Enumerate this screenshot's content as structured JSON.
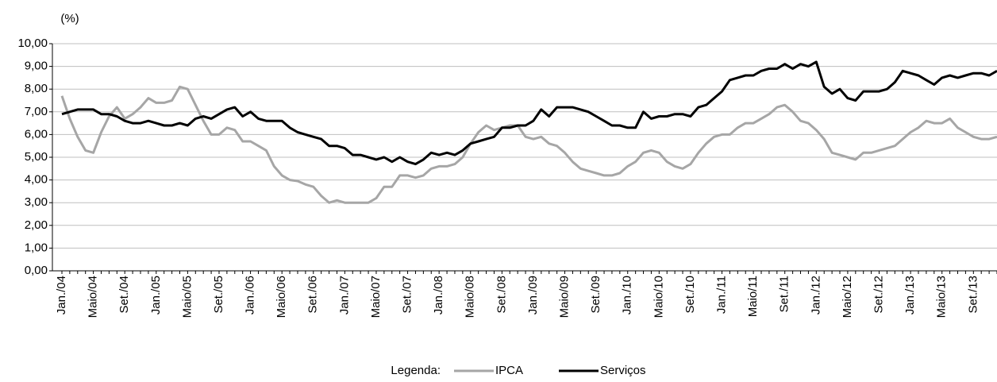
{
  "chart_data": {
    "type": "line",
    "y_unit_label": "(%)",
    "legend_title": "Legenda:",
    "categories": [
      "Jan./04",
      null,
      null,
      null,
      "Maio/04",
      null,
      null,
      null,
      "Set./04",
      null,
      null,
      null,
      "Jan./05",
      null,
      null,
      null,
      "Maio/05",
      null,
      null,
      null,
      "Set./05",
      null,
      null,
      null,
      "Jan./06",
      null,
      null,
      null,
      "Maio/06",
      null,
      null,
      null,
      "Set./06",
      null,
      null,
      null,
      "Jan./07",
      null,
      null,
      null,
      "Maio/07",
      null,
      null,
      null,
      "Set./07",
      null,
      null,
      null,
      "Jan./08",
      null,
      null,
      null,
      "Maio/08",
      null,
      null,
      null,
      "Set./08",
      null,
      null,
      null,
      "Jan./09",
      null,
      null,
      null,
      "Maio/09",
      null,
      null,
      null,
      "Set./09",
      null,
      null,
      null,
      "Jan./10",
      null,
      null,
      null,
      "Maio/10",
      null,
      null,
      null,
      "Set./10",
      null,
      null,
      null,
      "Jan./11",
      null,
      null,
      null,
      "Maio/11",
      null,
      null,
      null,
      "Set./11",
      null,
      null,
      null,
      "Jan./12",
      null,
      null,
      null,
      "Maio/12",
      null,
      null,
      null,
      "Set./12",
      null,
      null,
      null,
      "Jan./13",
      null,
      null,
      null,
      "Maio/13",
      null,
      null,
      null,
      "Set./13",
      null,
      null,
      null
    ],
    "series": [
      {
        "name": "IPCA",
        "color": "#a6a6a6",
        "values": [
          7.7,
          6.7,
          5.9,
          5.3,
          5.2,
          6.1,
          6.8,
          7.2,
          6.7,
          6.9,
          7.2,
          7.6,
          7.4,
          7.4,
          7.5,
          8.1,
          8.0,
          7.3,
          6.6,
          6.0,
          6.0,
          6.3,
          6.2,
          5.7,
          5.7,
          5.5,
          5.3,
          4.6,
          4.2,
          4.0,
          3.95,
          3.8,
          3.7,
          3.3,
          3.0,
          3.1,
          3.0,
          3.0,
          3.0,
          3.0,
          3.2,
          3.7,
          3.7,
          4.2,
          4.2,
          4.1,
          4.2,
          4.5,
          4.6,
          4.6,
          4.7,
          5.0,
          5.6,
          6.1,
          6.4,
          6.2,
          6.3,
          6.4,
          6.4,
          5.9,
          5.8,
          5.9,
          5.6,
          5.5,
          5.2,
          4.8,
          4.5,
          4.4,
          4.3,
          4.2,
          4.2,
          4.3,
          4.6,
          4.8,
          5.2,
          5.3,
          5.2,
          4.8,
          4.6,
          4.5,
          4.7,
          5.2,
          5.6,
          5.9,
          6.0,
          6.0,
          6.3,
          6.5,
          6.5,
          6.7,
          6.9,
          7.2,
          7.3,
          7.0,
          6.6,
          6.5,
          6.2,
          5.8,
          5.2,
          5.1,
          5.0,
          4.9,
          5.2,
          5.2,
          5.3,
          5.4,
          5.5,
          5.8,
          6.1,
          6.3,
          6.6,
          6.5,
          6.5,
          6.7,
          6.3,
          6.1,
          5.9,
          5.8,
          5.8,
          5.9
        ]
      },
      {
        "name": "Serviços",
        "color": "#000000",
        "values": [
          6.9,
          7.0,
          7.1,
          7.1,
          7.1,
          6.9,
          6.9,
          6.8,
          6.6,
          6.5,
          6.5,
          6.6,
          6.5,
          6.4,
          6.4,
          6.5,
          6.4,
          6.7,
          6.8,
          6.7,
          6.9,
          7.1,
          7.2,
          6.8,
          7.0,
          6.7,
          6.6,
          6.6,
          6.6,
          6.3,
          6.1,
          6.0,
          5.9,
          5.8,
          5.5,
          5.5,
          5.4,
          5.1,
          5.1,
          5.0,
          4.9,
          5.0,
          4.8,
          5.0,
          4.8,
          4.7,
          4.9,
          5.2,
          5.1,
          5.2,
          5.1,
          5.3,
          5.6,
          5.7,
          5.8,
          5.9,
          6.3,
          6.3,
          6.4,
          6.4,
          6.6,
          7.1,
          6.8,
          7.2,
          7.2,
          7.2,
          7.1,
          7.0,
          6.8,
          6.6,
          6.4,
          6.4,
          6.3,
          6.3,
          7.0,
          6.7,
          6.8,
          6.8,
          6.9,
          6.9,
          6.8,
          7.2,
          7.3,
          7.6,
          7.9,
          8.4,
          8.5,
          8.6,
          8.6,
          8.8,
          8.9,
          8.9,
          9.1,
          8.9,
          9.1,
          9.0,
          9.2,
          8.1,
          7.8,
          8.0,
          7.6,
          7.5,
          7.9,
          7.9,
          7.9,
          8.0,
          8.3,
          8.8,
          8.7,
          8.6,
          8.4,
          8.2,
          8.5,
          8.6,
          8.5,
          8.6,
          8.7,
          8.7,
          8.6,
          8.8
        ]
      }
    ],
    "ylim": [
      0,
      10
    ],
    "yticks": [
      {
        "value": 0,
        "label": "0,00"
      },
      {
        "value": 1,
        "label": "1,00"
      },
      {
        "value": 2,
        "label": "2,00"
      },
      {
        "value": 3,
        "label": "3,00"
      },
      {
        "value": 4,
        "label": "4,00"
      },
      {
        "value": 5,
        "label": "5,00"
      },
      {
        "value": 6,
        "label": "6,00"
      },
      {
        "value": 7,
        "label": "7,00"
      },
      {
        "value": 8,
        "label": "8,00"
      },
      {
        "value": 9,
        "label": "9,00"
      },
      {
        "value": 10,
        "label": "10,00"
      }
    ],
    "grid": true,
    "legend": "bottom"
  }
}
